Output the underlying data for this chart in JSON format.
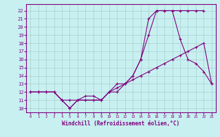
{
  "xlabel": "Windchill (Refroidissement éolien,°C)",
  "bg_color": "#c8f0f0",
  "line_color": "#800080",
  "xlim": [
    -0.5,
    23.5
  ],
  "ylim": [
    9.5,
    22.8
  ],
  "yticks": [
    10,
    11,
    12,
    13,
    14,
    15,
    16,
    17,
    18,
    19,
    20,
    21,
    22
  ],
  "xticks": [
    0,
    1,
    2,
    3,
    4,
    5,
    6,
    7,
    8,
    9,
    10,
    11,
    12,
    13,
    14,
    15,
    16,
    17,
    18,
    19,
    20,
    21,
    22,
    23
  ],
  "line1_x": [
    0,
    1,
    2,
    3,
    4,
    5,
    6,
    7,
    8,
    9,
    10,
    11,
    12,
    13,
    14,
    15,
    16,
    17,
    18,
    19,
    20,
    21,
    22
  ],
  "line1_y": [
    12,
    12,
    12,
    12,
    11,
    10,
    11,
    11,
    11,
    11,
    12,
    13,
    13,
    14,
    16,
    21,
    22,
    22,
    22,
    22,
    22,
    22,
    22
  ],
  "line2_x": [
    0,
    1,
    2,
    3,
    4,
    5,
    6,
    7,
    8,
    9,
    10,
    11,
    12,
    13,
    14,
    15,
    16,
    17,
    18,
    19,
    20,
    21,
    22,
    23
  ],
  "line2_y": [
    12,
    12,
    12,
    12,
    11,
    11,
    11,
    11,
    11,
    11,
    12,
    12,
    13,
    14,
    16,
    19,
    22,
    22,
    22,
    18.5,
    16,
    15.5,
    14.5,
    13
  ],
  "line3_x": [
    0,
    1,
    2,
    3,
    4,
    5,
    6,
    7,
    8,
    9,
    10,
    11,
    12,
    13,
    14,
    15,
    16,
    17,
    18,
    19,
    20,
    21,
    22,
    23
  ],
  "line3_y": [
    12,
    12,
    12,
    12,
    11,
    10,
    11,
    11.5,
    11.5,
    11,
    12,
    12.5,
    13,
    13.5,
    14,
    14.5,
    15,
    15.5,
    16,
    16.5,
    17,
    17.5,
    18,
    13
  ]
}
